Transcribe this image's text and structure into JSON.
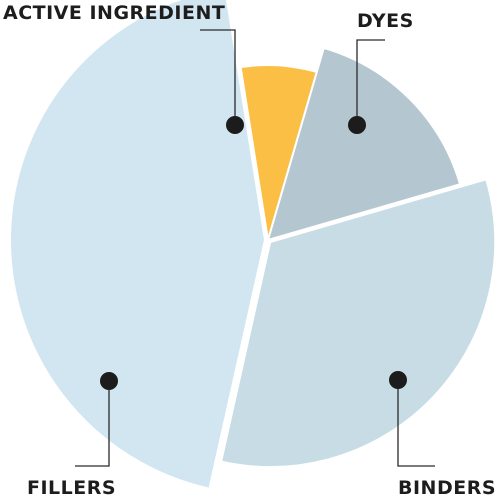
{
  "chart_data": {
    "type": "pie",
    "title": "",
    "slices": [
      {
        "label": "ACTIVE INGREDIENT",
        "value": 7,
        "color": "#fbbf45"
      },
      {
        "label": "DYES",
        "value": 16,
        "color": "#b4c6d0"
      },
      {
        "label": "BINDERS",
        "value": 33,
        "color": "#c8dce6"
      },
      {
        "label": "FILLERS",
        "value": 44,
        "color": "#d2e6f2"
      }
    ],
    "legend": "none",
    "exploded": true
  }
}
